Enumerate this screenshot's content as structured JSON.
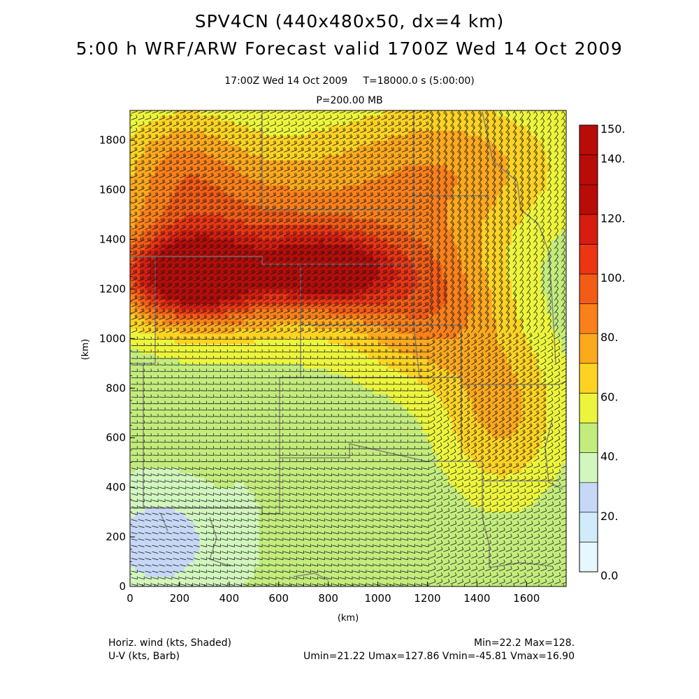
{
  "title_line1": "SPV4CN (440x480x50, dx=4 km)",
  "title_line2": "5:00 h WRF/ARW Forecast valid 1700Z Wed 14 Oct 2009",
  "valid_time": "17:00Z Wed 14 Oct 2009",
  "sim_time": "T=18000.0 s (5:00:00)",
  "level": "P=200.00 MB",
  "footer": {
    "shaded_label": "Horiz. wind (kts, Shaded)",
    "barb_label": "U-V (kts, Barb)",
    "minmax": "Min=22.2 Max=128.",
    "uv_stats": "Umin=21.22 Umax=127.86 Vmin=-45.81 Vmax=16.90"
  },
  "colors": {
    "scale": [
      "#e6f7fd",
      "#d2ebfa",
      "#c6d8f5",
      "#d2f7be",
      "#c3ec7c",
      "#ecf53c",
      "#fdd323",
      "#fda91e",
      "#f9801a",
      "#f45c16",
      "#ec3513",
      "#d71d0f",
      "#b80c09"
    ]
  },
  "chart_data": {
    "type": "heatmap",
    "field": "horizontal wind speed (kts) with U-V wind barbs",
    "xlabel": "(km)",
    "ylabel": "(km)",
    "xlim": [
      0,
      1760
    ],
    "ylim": [
      0,
      1920
    ],
    "xticks": [
      0,
      200,
      400,
      600,
      800,
      1000,
      1200,
      1400,
      1600
    ],
    "yticks": [
      0,
      200,
      400,
      600,
      800,
      1000,
      1200,
      1400,
      1600,
      1800
    ],
    "colorbar_levels": [
      0,
      10,
      20,
      30,
      40,
      50,
      60,
      70,
      80,
      90,
      100,
      110,
      120,
      130,
      140,
      150
    ],
    "colorbar_tick_labels": [
      "0.0",
      "20.",
      "40.",
      "60.",
      "80.",
      "100.",
      "120.",
      "140.",
      "150."
    ],
    "colorbar_tick_values": [
      0,
      20,
      40,
      60,
      80,
      100,
      120,
      140,
      150
    ],
    "jet_core": {
      "x": 250,
      "y": 1250,
      "speed": 125
    },
    "secondary_max": {
      "x": 800,
      "y": 1270,
      "speed": 112
    },
    "min_region": {
      "x": 120,
      "y": 180,
      "speed": 25
    },
    "field_min": 22.2,
    "field_max": 128
  }
}
